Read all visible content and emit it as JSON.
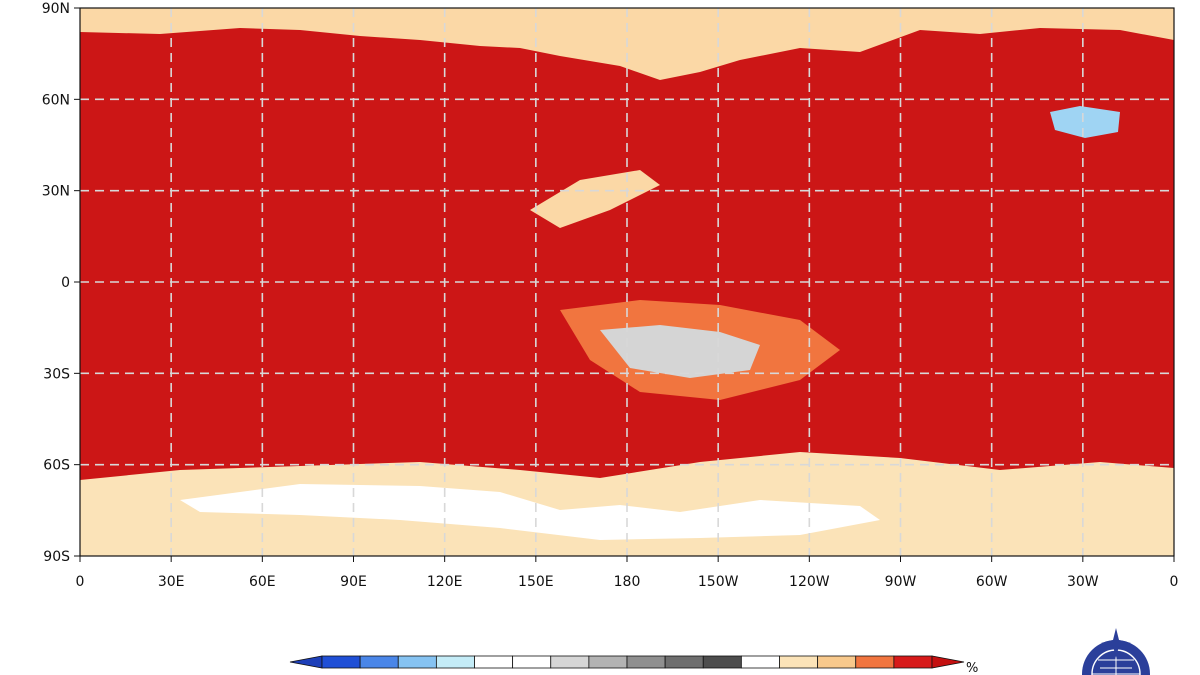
{
  "map": {
    "projection": "equirectangular",
    "lat_labels": [
      "90N",
      "60N",
      "30N",
      "0",
      "30S",
      "60S",
      "90S"
    ],
    "lat_values": [
      90,
      60,
      30,
      0,
      -30,
      -60,
      -90
    ],
    "lon_labels": [
      "0",
      "30E",
      "60E",
      "90E",
      "120E",
      "150E",
      "180",
      "150W",
      "120W",
      "90W",
      "60W",
      "30W",
      "0"
    ],
    "lon_values": [
      0,
      30,
      60,
      90,
      120,
      150,
      180,
      210,
      240,
      270,
      300,
      330,
      360
    ],
    "gridlines": "dashed",
    "grid_color": "#d8d8d8",
    "background_color": "#cc1616",
    "regions": [
      {
        "name": "arctic-band",
        "color": "#fbd8a6"
      },
      {
        "name": "antarctic-band",
        "color": "#fbe3b8"
      },
      {
        "name": "antarctica-land",
        "color": "#ffffff"
      },
      {
        "name": "tropical-pacific-orange",
        "color": "#f1753f"
      },
      {
        "name": "south-pacific-gray",
        "color": "#d5d5d5"
      },
      {
        "name": "north-atlantic-blue",
        "color": "#9fd4f3"
      },
      {
        "name": "north-pacific-plume",
        "color": "#fbd8a6"
      }
    ]
  },
  "colorbar": {
    "unit": "%",
    "colors": [
      "#1f4fd6",
      "#4a86e8",
      "#86c3f2",
      "#c4ecf7",
      "#ffffff",
      "#ffffff",
      "#d6d6d6",
      "#b3b3b3",
      "#8f8f8f",
      "#6e6e6e",
      "#4d4d4d",
      "#ffffff",
      "#fbe3b8",
      "#f8c98c",
      "#f1753f",
      "#d71a1a"
    ],
    "left_arrow_color": "#1d3fb8",
    "right_arrow_color": "#c41010"
  },
  "logo": {
    "name": "wmo-emblem",
    "color": "#2b3f9a"
  }
}
